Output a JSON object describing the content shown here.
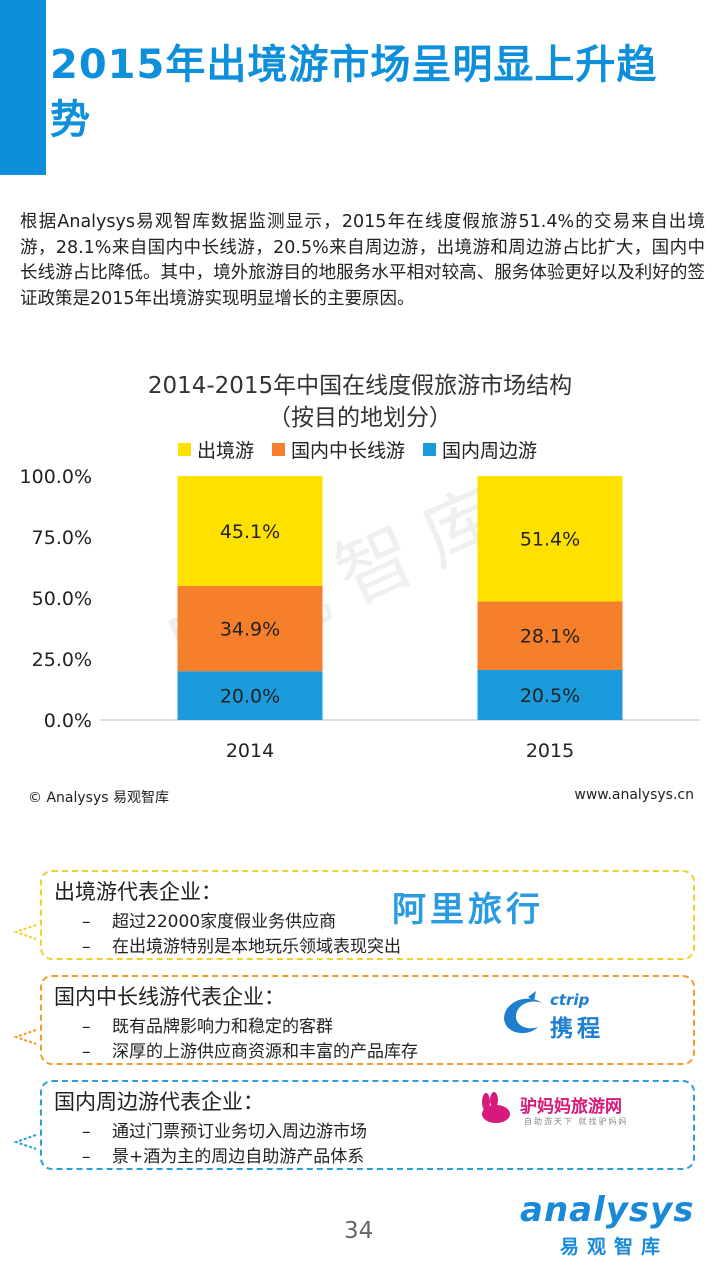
{
  "slide": {
    "title": "2015年出境游市场呈明显上升趋势",
    "intro": "根据Analysys易观智库数据监测显示，2015年在线度假旅游51.4%的交易来自出境游，28.1%来自国内中长线游，20.5%来自周边游，出境游和周边游占比扩大，国内中长线游占比降低。其中，境外旅游目的地服务水平相对较高、服务体验更好以及利好的签证政策是2015年出境游实现明显增长的主要原因。",
    "watermark": "易观智库",
    "footer_left": "© Analysys  易观智库",
    "footer_right": "www.analysys.cn",
    "page_number": "34"
  },
  "chart_data": {
    "type": "bar",
    "stacked": true,
    "title": "2014-2015年中国在线度假旅游市场结构",
    "subtitle": "（按目的地划分）",
    "categories": [
      "2014",
      "2015"
    ],
    "series": [
      {
        "name": "国内周边游",
        "color": "#1b9bdc",
        "values": [
          20.0,
          20.5
        ],
        "labels": [
          "20.0%",
          "20.5%"
        ]
      },
      {
        "name": "国内中长线游",
        "color": "#f57f2a",
        "values": [
          34.9,
          28.1
        ],
        "labels": [
          "34.9%",
          "28.1%"
        ]
      },
      {
        "name": "出境游",
        "color": "#ffe100",
        "values": [
          45.1,
          51.4
        ],
        "labels": [
          "45.1%",
          "51.4%"
        ]
      }
    ],
    "legend_order": [
      "出境游",
      "国内中长线游",
      "国内周边游"
    ],
    "yticks": [
      "0.0%",
      "25.0%",
      "50.0%",
      "75.0%",
      "100.0%"
    ],
    "ylim": [
      0,
      100
    ],
    "legend_position": "top"
  },
  "cards": [
    {
      "heading": "出境游代表企业：",
      "items": [
        "超过22000家度假业务供应商",
        "在出境游特别是本地玩乐领域表现突出"
      ],
      "logo": "阿里旅行",
      "color": "#f2d12a"
    },
    {
      "heading": "国内中长线游代表企业：",
      "items": [
        "既有品牌影响力和稳定的客群",
        "深厚的上游供应商资源和丰富的产品库存"
      ],
      "logo_en": "ctrip",
      "logo_cn": "携程",
      "color": "#f29b2a"
    },
    {
      "heading": "国内周边游代表企业：",
      "items": [
        "通过门票预订业务切入周边游市场",
        "景+酒为主的周边自助游产品体系"
      ],
      "logo": "驴妈妈旅游网",
      "logo_sub": "自助游天下 就找驴妈妈",
      "color": "#2a9fd6"
    }
  ],
  "brand": {
    "en": "analysys",
    "cn": "易观智库"
  }
}
